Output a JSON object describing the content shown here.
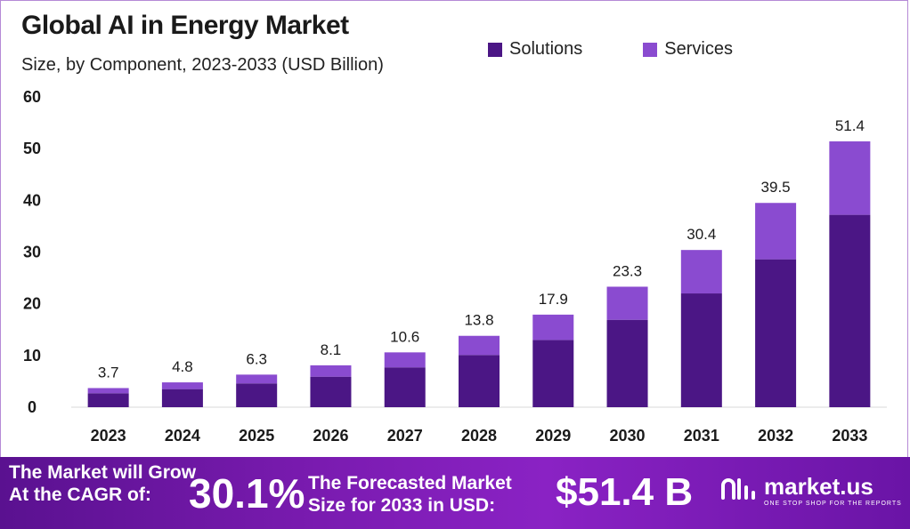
{
  "title": "Global AI in Energy Market",
  "subtitle": "Size, by Component, 2023-2033 (USD Billion)",
  "colors": {
    "solutions": "#4b1685",
    "services": "#8a4bd0",
    "accent": "#7a1bb0"
  },
  "chart_data": {
    "type": "bar",
    "stacked": true,
    "categories": [
      "2023",
      "2024",
      "2025",
      "2026",
      "2027",
      "2028",
      "2029",
      "2030",
      "2031",
      "2032",
      "2033"
    ],
    "series": [
      {
        "name": "Solutions",
        "values": [
          2.7,
          3.5,
          4.6,
          5.9,
          7.7,
          10.1,
          13.0,
          16.9,
          22.0,
          28.6,
          37.2
        ]
      },
      {
        "name": "Services",
        "values": [
          1.0,
          1.3,
          1.7,
          2.2,
          2.9,
          3.7,
          4.9,
          6.4,
          8.4,
          10.9,
          14.2
        ]
      }
    ],
    "totals": [
      "3.7",
      "4.8",
      "6.3",
      "8.1",
      "10.6",
      "13.8",
      "17.9",
      "23.3",
      "30.4",
      "39.5",
      "51.4"
    ],
    "yticks": [
      "0",
      "10",
      "20",
      "30",
      "40",
      "50",
      "60"
    ],
    "ylim": [
      0,
      60
    ],
    "grid": false,
    "legend_position": "top-right"
  },
  "banner": {
    "line1": "The Market will Grow",
    "line2": "At the CAGR of:",
    "cagr": "30.1%",
    "forecast_line1": "The Forecasted Market",
    "forecast_line2": "Size for 2033 in USD:",
    "value": "$51.4 B",
    "logo_text": "market.us",
    "logo_tagline": "ONE STOP SHOP FOR THE REPORTS",
    "logo_icon": "market-us-logo-icon"
  }
}
